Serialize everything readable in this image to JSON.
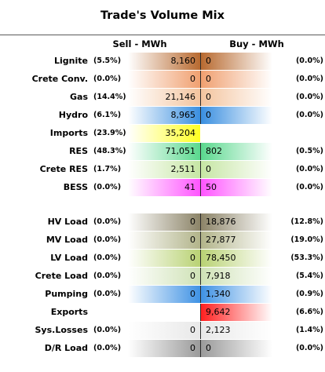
{
  "title": "Trade's Volume Mix",
  "headers": {
    "sell": "Sell - MWh",
    "buy": "Buy - MWh"
  },
  "chart_data": {
    "type": "table",
    "columns": [
      "Sell - MWh",
      "Buy - MWh"
    ],
    "rows": [
      {
        "label": "Lignite",
        "sell_pct": "(5.5%)",
        "sell": "8,160",
        "buy": "0",
        "buy_pct": "(0.0%)",
        "sell_color": "#b86a30",
        "buy_color": "#b86a30"
      },
      {
        "label": "Crete Conv.",
        "sell_pct": "(0.0%)",
        "sell": "0",
        "buy": "0",
        "buy_pct": "(0.0%)",
        "sell_color": "#f0a070",
        "buy_color": "#f0a070"
      },
      {
        "label": "Gas",
        "sell_pct": "(14.4%)",
        "sell": "21,146",
        "buy": "0",
        "buy_pct": "(0.0%)",
        "sell_color": "#f3c49e",
        "buy_color": "#f3c49e"
      },
      {
        "label": "Hydro",
        "sell_pct": "(6.1%)",
        "sell": "8,965",
        "buy": "0",
        "buy_pct": "(0.0%)",
        "sell_color": "#3a8fe0",
        "buy_color": "#3a8fe0"
      },
      {
        "label": "Imports",
        "sell_pct": "(23.9%)",
        "sell": "35,204",
        "buy": "",
        "buy_pct": "",
        "sell_color": "#ffff22",
        "buy_color": ""
      },
      {
        "label": "RES",
        "sell_pct": "(48.3%)",
        "sell": "71,051",
        "buy": "802",
        "buy_pct": "(0.5%)",
        "sell_color": "#5ad88e",
        "buy_color": "#5ad88e"
      },
      {
        "label": "Crete RES",
        "sell_pct": "(1.7%)",
        "sell": "2,511",
        "buy": "0",
        "buy_pct": "(0.0%)",
        "sell_color": "#c6e6a4",
        "buy_color": "#c6e6a4"
      },
      {
        "label": "BESS",
        "sell_pct": "(0.0%)",
        "sell": "41",
        "buy": "50",
        "buy_pct": "(0.0%)",
        "sell_color": "#ff55ff",
        "buy_color": "#ff55ff"
      },
      {
        "label": "HV Load",
        "sell_pct": "(0.0%)",
        "sell": "0",
        "buy": "18,876",
        "buy_pct": "(12.8%)",
        "sell_color": "#8c8468",
        "buy_color": "#8c8468"
      },
      {
        "label": "MV Load",
        "sell_pct": "(0.0%)",
        "sell": "0",
        "buy": "27,877",
        "buy_pct": "(19.0%)",
        "sell_color": "#b2b48a",
        "buy_color": "#b2b48a"
      },
      {
        "label": "LV Load",
        "sell_pct": "(0.0%)",
        "sell": "0",
        "buy": "78,450",
        "buy_pct": "(53.3%)",
        "sell_color": "#b9d274",
        "buy_color": "#b9d274"
      },
      {
        "label": "Crete Load",
        "sell_pct": "(0.0%)",
        "sell": "0",
        "buy": "7,918",
        "buy_pct": "(5.4%)",
        "sell_color": "#cfe2b6",
        "buy_color": "#cfe2b6"
      },
      {
        "label": "Pumping",
        "sell_pct": "(0.0%)",
        "sell": "0",
        "buy": "1,340",
        "buy_pct": "(0.9%)",
        "sell_color": "#3f92e4",
        "buy_color": "#3f92e4"
      },
      {
        "label": "Exports",
        "sell_pct": "",
        "sell": "",
        "buy": "9,642",
        "buy_pct": "(6.6%)",
        "sell_color": "",
        "buy_color": "#ff2020"
      },
      {
        "label": "Sys.Losses",
        "sell_pct": "(0.0%)",
        "sell": "0",
        "buy": "2,123",
        "buy_pct": "(1.4%)",
        "sell_color": "#e8e8e8",
        "buy_color": "#e8e8e8"
      },
      {
        "label": "D/R Load",
        "sell_pct": "(0.0%)",
        "sell": "0",
        "buy": "0",
        "buy_pct": "(0.0%)",
        "sell_color": "#9a9a9a",
        "buy_color": "#9a9a9a"
      }
    ]
  }
}
